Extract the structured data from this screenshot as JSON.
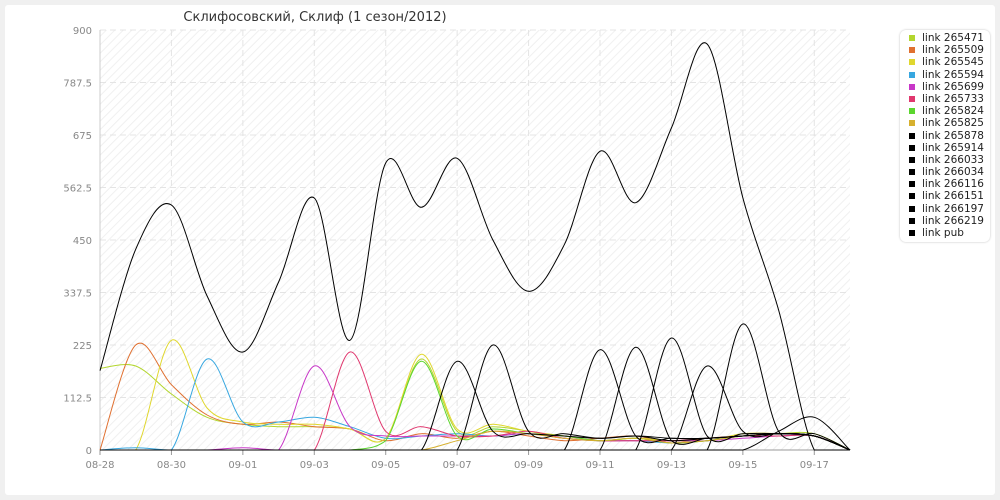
{
  "chart_data": {
    "type": "line",
    "title": "Склифосовский, Склиф (1 сезон/2012)",
    "xlabel": "",
    "ylabel": "",
    "ylim": [
      0,
      900
    ],
    "yticks": [
      0,
      112.5,
      225,
      337.5,
      450,
      562.5,
      675,
      787.5,
      900
    ],
    "ytick_labels": [
      "0",
      "112.5",
      "225",
      "337.5",
      "450",
      "562.5",
      "675",
      "787.5",
      "900"
    ],
    "x_dates": [
      "08-28",
      "08-29",
      "08-30",
      "08-31",
      "09-01",
      "09-02",
      "09-03",
      "09-04",
      "09-05",
      "09-06",
      "09-07",
      "09-08",
      "09-09",
      "09-10",
      "09-11",
      "09-12",
      "09-13",
      "09-14",
      "09-15",
      "09-16",
      "09-17",
      "09-18"
    ],
    "xtick_labels": [
      "08-28",
      "08-30",
      "09-01",
      "09-03",
      "09-05",
      "09-07",
      "09-09",
      "09-11",
      "09-13",
      "09-15",
      "09-17"
    ],
    "grid": true,
    "legend_position": "right",
    "series": [
      {
        "name": "link 265471",
        "color": "#b3d62e",
        "values": [
          175,
          180,
          120,
          70,
          55,
          50,
          50,
          45,
          25,
          195,
          40,
          50,
          40,
          25,
          20,
          25,
          15,
          20,
          30,
          35,
          35,
          0
        ]
      },
      {
        "name": "link 265509",
        "color": "#e07030",
        "values": [
          0,
          225,
          140,
          75,
          55,
          60,
          50,
          45,
          20,
          35,
          25,
          40,
          30,
          20,
          25,
          30,
          15,
          25,
          30,
          30,
          30,
          0
        ]
      },
      {
        "name": "link 265545",
        "color": "#e0d72e",
        "values": [
          0,
          0,
          235,
          90,
          60,
          55,
          55,
          45,
          25,
          205,
          45,
          55,
          40,
          30,
          20,
          25,
          20,
          20,
          35,
          35,
          30,
          0
        ]
      },
      {
        "name": "link 265594",
        "color": "#37a7e0",
        "values": [
          0,
          5,
          0,
          195,
          60,
          60,
          70,
          50,
          25,
          30,
          35,
          30,
          35,
          25,
          20,
          20,
          15,
          20,
          30,
          30,
          30,
          0
        ]
      },
      {
        "name": "link 265699",
        "color": "#c837c8",
        "values": [
          0,
          0,
          0,
          0,
          5,
          0,
          180,
          50,
          30,
          30,
          30,
          30,
          35,
          25,
          20,
          20,
          20,
          20,
          25,
          30,
          30,
          0
        ]
      },
      {
        "name": "link 265733",
        "color": "#e0376e",
        "values": [
          0,
          0,
          0,
          0,
          0,
          0,
          0,
          210,
          40,
          50,
          30,
          30,
          40,
          25,
          20,
          20,
          20,
          25,
          30,
          30,
          30,
          0
        ]
      },
      {
        "name": "link 265824",
        "color": "#5bd62e",
        "values": [
          0,
          0,
          0,
          0,
          0,
          0,
          0,
          0,
          20,
          190,
          30,
          45,
          35,
          30,
          20,
          25,
          15,
          20,
          30,
          35,
          30,
          0
        ]
      },
      {
        "name": "link 265825",
        "color": "#d6b02e",
        "values": [
          0,
          0,
          0,
          0,
          0,
          0,
          0,
          0,
          0,
          0,
          20,
          40,
          35,
          25,
          20,
          25,
          15,
          20,
          30,
          35,
          30,
          0
        ]
      },
      {
        "name": "link 265878",
        "color": "#000000",
        "values": [
          0,
          0,
          0,
          0,
          0,
          0,
          0,
          0,
          0,
          0,
          190,
          40,
          35,
          30,
          25,
          30,
          20,
          25,
          30,
          35,
          30,
          0
        ]
      },
      {
        "name": "link 265914",
        "color": "#000000",
        "values": [
          0,
          0,
          0,
          0,
          0,
          0,
          0,
          0,
          0,
          0,
          0,
          225,
          40,
          35,
          25,
          30,
          25,
          25,
          30,
          35,
          30,
          0
        ]
      },
      {
        "name": "link 266033",
        "color": "#000000",
        "values": [
          0,
          0,
          0,
          0,
          0,
          0,
          0,
          0,
          0,
          0,
          0,
          0,
          0,
          0,
          215,
          30,
          25,
          25,
          30,
          35,
          30,
          0
        ]
      },
      {
        "name": "link 266034",
        "color": "#000000",
        "values": [
          0,
          0,
          0,
          0,
          0,
          0,
          0,
          0,
          0,
          0,
          0,
          0,
          0,
          0,
          0,
          220,
          20,
          25,
          30,
          35,
          30,
          0
        ]
      },
      {
        "name": "link 266116",
        "color": "#000000",
        "values": [
          0,
          0,
          0,
          0,
          0,
          0,
          0,
          0,
          0,
          0,
          0,
          0,
          0,
          0,
          0,
          0,
          240,
          30,
          35,
          35,
          30,
          0
        ]
      },
      {
        "name": "link 266151",
        "color": "#000000",
        "values": [
          0,
          0,
          0,
          0,
          0,
          0,
          0,
          0,
          0,
          0,
          0,
          0,
          0,
          0,
          0,
          0,
          0,
          180,
          40,
          35,
          30,
          0
        ]
      },
      {
        "name": "link 266197",
        "color": "#000000",
        "values": [
          0,
          0,
          0,
          0,
          0,
          0,
          0,
          0,
          0,
          0,
          0,
          0,
          0,
          0,
          0,
          0,
          0,
          0,
          270,
          40,
          35,
          0
        ]
      },
      {
        "name": "link 266219",
        "color": "#000000",
        "values": [
          0,
          0,
          0,
          0,
          0,
          0,
          0,
          0,
          0,
          0,
          0,
          0,
          0,
          0,
          0,
          0,
          0,
          0,
          0,
          40,
          70,
          0
        ]
      },
      {
        "name": "link pub",
        "color": "#000000",
        "values": [
          170,
          430,
          525,
          330,
          210,
          360,
          540,
          235,
          615,
          520,
          625,
          450,
          340,
          440,
          640,
          530,
          690,
          870,
          540,
          300,
          0,
          0
        ]
      }
    ]
  }
}
